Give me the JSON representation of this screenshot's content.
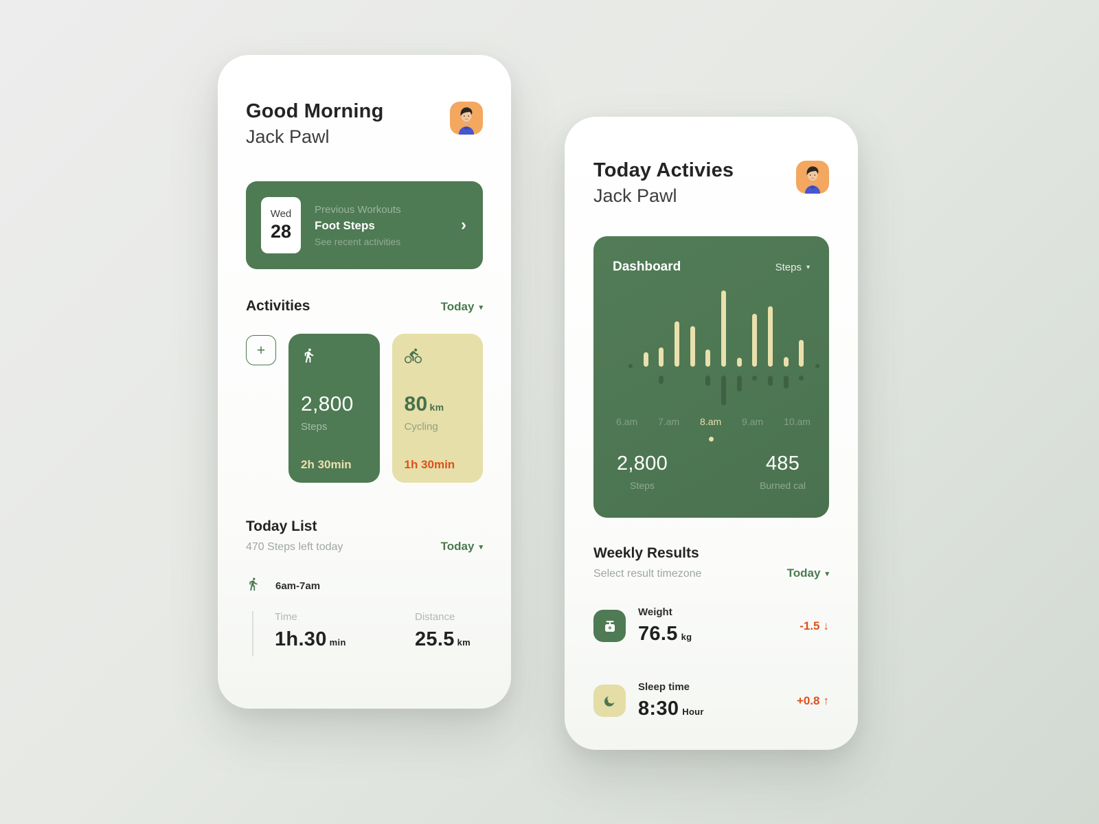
{
  "colors": {
    "accent_green": "#4E7A54",
    "dashboard_green": "#4C7551",
    "cream": "#E9E0AD",
    "yellow_card": "#E6DFA9",
    "orange": "#DE4F1D",
    "link_green": "#4A7A50",
    "dark_bar": "#3E6144"
  },
  "glyphs": {
    "caret": "▾",
    "chevron": "›",
    "plus": "+"
  },
  "left_screen": {
    "greeting": "Good Morning",
    "user_name": "Jack Pawl",
    "previous_card": {
      "day": "Wed",
      "date": "28",
      "subtitle": "Previous Workouts",
      "title": "Foot Steps",
      "caption": "See recent activities"
    },
    "activities": {
      "title": "Activities",
      "filter": "Today",
      "steps_card": {
        "value": "2,800",
        "label": "Steps",
        "duration": "2h 30min"
      },
      "cycling_card": {
        "value": "80",
        "unit": "km",
        "label": "Cycling",
        "duration": "1h 30min"
      }
    },
    "today_list": {
      "title": "Today List",
      "subtitle": "470 Steps left today",
      "filter": "Today",
      "entry": {
        "time_range": "6am-7am",
        "time_label": "Time",
        "time_value": "1h.30",
        "time_unit": "min",
        "distance_label": "Distance",
        "distance_value": "25.5",
        "distance_unit": "km"
      }
    }
  },
  "right_screen": {
    "title": "Today Activies",
    "user_name": "Jack Pawl",
    "dashboard": {
      "title": "Dashboard",
      "metric": "Steps",
      "steps_value": "2,800",
      "steps_label": "Steps",
      "cal_value": "485",
      "cal_label": "Burned cal"
    },
    "weekly": {
      "title": "Weekly Results",
      "subtitle": "Select result timezone",
      "filter": "Today",
      "rows": [
        {
          "label": "Weight",
          "value": "76.5",
          "unit": "kg",
          "delta": "-1.5",
          "arrow": "↓"
        },
        {
          "label": "Sleep time",
          "value": "8:30",
          "unit": "Hour",
          "delta": "+0.8",
          "arrow": "↑"
        }
      ]
    }
  },
  "chart_data": {
    "type": "bar",
    "title": "Dashboard",
    "metric_selector": "Steps",
    "x_labels": [
      "6.am",
      "7.am",
      "8.am",
      "9.am",
      "10.am"
    ],
    "highlighted_label": "8.am",
    "note": "heights are relative pixel heights above/below the baseline; no numeric axis shown",
    "bars": [
      {
        "edge_dot": true
      },
      {
        "up": 21,
        "down": 0
      },
      {
        "up": 28,
        "down": 12
      },
      {
        "up": 66,
        "down": 0
      },
      {
        "up": 59,
        "down": 0
      },
      {
        "up": 25,
        "down": 15
      },
      {
        "up": 111,
        "down": 43
      },
      {
        "up": 13,
        "down": 23
      },
      {
        "up": 77,
        "down": 0,
        "down_dot": true
      },
      {
        "up": 88,
        "down": 15
      },
      {
        "up": 14,
        "down": 19
      },
      {
        "up": 39,
        "down": 0,
        "down_dot": true
      },
      {
        "edge_dot": true
      }
    ],
    "summary": {
      "steps": "2,800",
      "burned_cal": "485"
    }
  }
}
